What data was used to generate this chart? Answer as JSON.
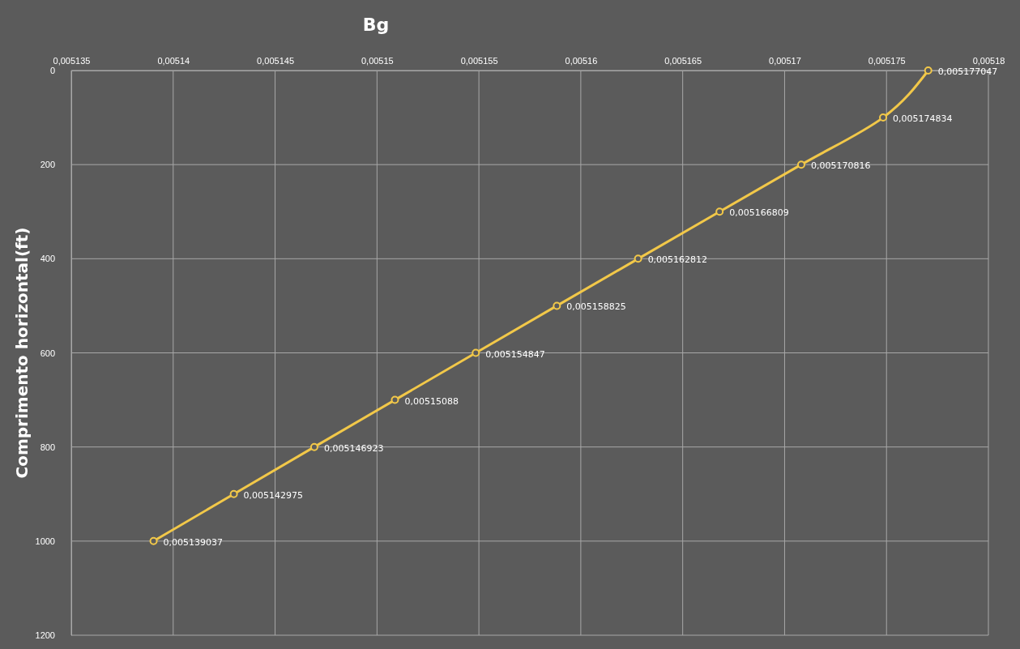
{
  "chart_data": {
    "type": "line",
    "title": "Bg",
    "ylabel": "Comprimento horizontal(ft)",
    "orientation": "horizontal",
    "x": [
      0,
      100,
      200,
      300,
      400,
      500,
      600,
      700,
      800,
      900,
      1000
    ],
    "series": [
      {
        "color": "#f2c849",
        "values": [
          0.005177047,
          0.005174834,
          0.005170816,
          0.005166809,
          0.005162812,
          0.005158825,
          0.005154847,
          0.00515088,
          0.005146923,
          0.005142975,
          0.005139037
        ],
        "value_labels": [
          "0,005177047",
          "0,005174834",
          "0,005170816",
          "0,005166809",
          "0,005162812",
          "0,005158825",
          "0,005154847",
          "0,00515088",
          "0,005146923",
          "0,005142975",
          "0,005139037"
        ]
      }
    ],
    "xlim": [
      0.005135,
      0.00518
    ],
    "xticks": [
      {
        "value": 0.005135,
        "label": "0,005135"
      },
      {
        "value": 0.00514,
        "label": "0,00514"
      },
      {
        "value": 0.005145,
        "label": "0,005145"
      },
      {
        "value": 0.00515,
        "label": "0,00515"
      },
      {
        "value": 0.005155,
        "label": "0,005155"
      },
      {
        "value": 0.00516,
        "label": "0,00516"
      },
      {
        "value": 0.005165,
        "label": "0,005165"
      },
      {
        "value": 0.00517,
        "label": "0,00517"
      },
      {
        "value": 0.005175,
        "label": "0,005175"
      },
      {
        "value": 0.00518,
        "label": "0,00518"
      }
    ],
    "ylim": [
      1200,
      0
    ],
    "yticks": [
      0,
      200,
      400,
      600,
      800,
      1000,
      1200
    ],
    "grid": true,
    "marker": "circle",
    "line_style": "solid"
  }
}
